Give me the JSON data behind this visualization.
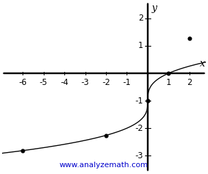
{
  "xlabel": "x",
  "ylabel": "y",
  "xlim": [
    -7.0,
    2.8
  ],
  "ylim": [
    -3.6,
    2.6
  ],
  "xticks": [
    -6,
    -5,
    -4,
    -3,
    -2,
    -1,
    1,
    2
  ],
  "yticks": [
    -3,
    -2,
    -1,
    1,
    2
  ],
  "highlight_points": [
    [
      -6.0,
      -2.817
    ],
    [
      -2.0,
      -2.26
    ],
    [
      0.0,
      -1.0
    ],
    [
      1.0,
      0.0
    ],
    [
      2.0,
      1.26
    ]
  ],
  "curve_color": "#000000",
  "point_color": "#000000",
  "axis_color": "#000000",
  "background_color": "#ffffff",
  "watermark": "www.analyzemath.com",
  "watermark_color": "#0000cc",
  "tick_fontsize": 8.5,
  "watermark_fontsize": 8,
  "axis_linewidth": 1.8,
  "curve_linewidth": 1.0
}
